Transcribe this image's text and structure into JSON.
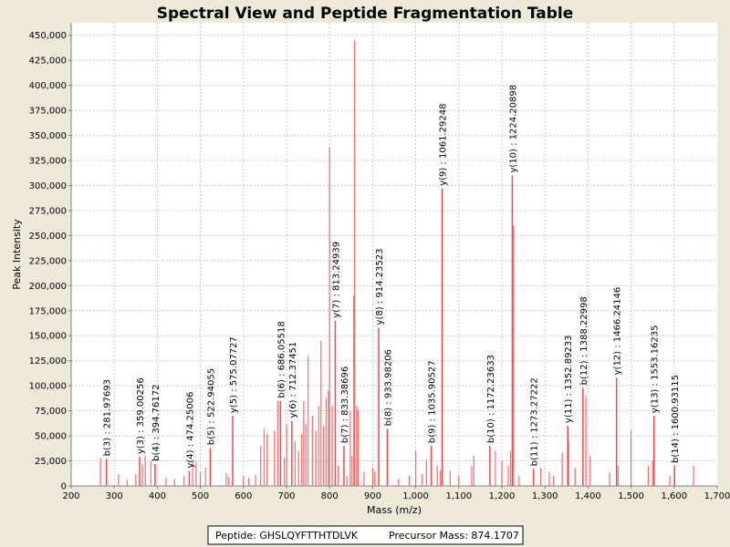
{
  "chart_data": {
    "type": "bar",
    "title": "Spectral View and Peptide Fragmentation Table",
    "xlabel": "Mass (m/z)",
    "ylabel": "Peak Intensity",
    "xlim": [
      200,
      1700
    ],
    "ylim": [
      0,
      462500
    ],
    "grid": true,
    "x_ticks": [
      "200",
      "300",
      "400",
      "500",
      "600",
      "700",
      "800",
      "900",
      "1,000",
      "1,100",
      "1,200",
      "1,300",
      "1,400",
      "1,500",
      "1,600",
      "1,700"
    ],
    "y_ticks": [
      "0",
      "25,000",
      "50,000",
      "75,000",
      "100,000",
      "125,000",
      "150,000",
      "175,000",
      "200,000",
      "225,000",
      "250,000",
      "275,000",
      "300,000",
      "325,000",
      "350,000",
      "375,000",
      "400,000",
      "425,000",
      "450,000"
    ],
    "bar_color": "#ff4444",
    "annotated_peaks": [
      {
        "mz": 281.98,
        "intensity": 27000,
        "label": "b(3) : 281.97693"
      },
      {
        "mz": 359.0,
        "intensity": 29000,
        "label": "y(3) : 359.00256"
      },
      {
        "mz": 394.76,
        "intensity": 22000,
        "label": "b(4) : 394.76172"
      },
      {
        "mz": 474.25,
        "intensity": 15000,
        "label": "y(4) : 474.25006"
      },
      {
        "mz": 522.94,
        "intensity": 38000,
        "label": "b(5) : 522.94055"
      },
      {
        "mz": 575.08,
        "intensity": 70000,
        "label": "y(5) : 575.07727"
      },
      {
        "mz": 686.06,
        "intensity": 85000,
        "label": "b(6) : 686.05518"
      },
      {
        "mz": 712.37,
        "intensity": 65000,
        "label": "y(6) : 712.37451"
      },
      {
        "mz": 813.25,
        "intensity": 165000,
        "label": "y(7) : 813.24939"
      },
      {
        "mz": 833.39,
        "intensity": 40000,
        "label": "b(7) : 833.38696"
      },
      {
        "mz": 914.24,
        "intensity": 158000,
        "label": "y(8) : 914.23523"
      },
      {
        "mz": 933.98,
        "intensity": 57000,
        "label": "b(8) : 933.98206"
      },
      {
        "mz": 1035.91,
        "intensity": 40000,
        "label": "b(9) : 1035.90527"
      },
      {
        "mz": 1061.29,
        "intensity": 297000,
        "label": "y(9) : 1061.29248"
      },
      {
        "mz": 1172.24,
        "intensity": 40000,
        "label": "b(10) : 1172.23633"
      },
      {
        "mz": 1224.21,
        "intensity": 310000,
        "label": "y(10) : 1224.20898"
      },
      {
        "mz": 1273.27,
        "intensity": 17000,
        "label": "b(11) : 1273.27222"
      },
      {
        "mz": 1352.89,
        "intensity": 60000,
        "label": "y(11) : 1352.89233"
      },
      {
        "mz": 1388.23,
        "intensity": 98000,
        "label": "b(12) : 1388.22998"
      },
      {
        "mz": 1466.24,
        "intensity": 108000,
        "label": "y(12) : 1466.24146"
      },
      {
        "mz": 1553.16,
        "intensity": 70000,
        "label": "y(13) : 1553.16235"
      },
      {
        "mz": 1600.93,
        "intensity": 20000,
        "label": "b(14) : 1600.93115"
      }
    ],
    "other_peaks": [
      [
        268,
        28000
      ],
      [
        310,
        12000
      ],
      [
        330,
        6000
      ],
      [
        350,
        12000
      ],
      [
        365,
        22000
      ],
      [
        372,
        30000
      ],
      [
        385,
        25000
      ],
      [
        420,
        8000
      ],
      [
        440,
        7000
      ],
      [
        462,
        10000
      ],
      [
        482,
        25000
      ],
      [
        490,
        24000
      ],
      [
        500,
        14000
      ],
      [
        512,
        18000
      ],
      [
        560,
        13000
      ],
      [
        566,
        9000
      ],
      [
        600,
        10000
      ],
      [
        612,
        8000
      ],
      [
        628,
        11000
      ],
      [
        640,
        40000
      ],
      [
        648,
        57000
      ],
      [
        655,
        52000
      ],
      [
        672,
        55000
      ],
      [
        680,
        85000
      ],
      [
        695,
        28000
      ],
      [
        700,
        62000
      ],
      [
        720,
        45000
      ],
      [
        728,
        35000
      ],
      [
        735,
        52000
      ],
      [
        740,
        85000
      ],
      [
        745,
        62000
      ],
      [
        750,
        130000
      ],
      [
        760,
        70000
      ],
      [
        768,
        55000
      ],
      [
        775,
        80000
      ],
      [
        780,
        145000
      ],
      [
        786,
        60000
      ],
      [
        792,
        88000
      ],
      [
        797,
        95000
      ],
      [
        800,
        338000
      ],
      [
        806,
        80000
      ],
      [
        820,
        20000
      ],
      [
        840,
        10000
      ],
      [
        848,
        75000
      ],
      [
        852,
        30000
      ],
      [
        856,
        190000
      ],
      [
        858,
        445000
      ],
      [
        863,
        80000
      ],
      [
        866,
        76000
      ],
      [
        880,
        14000
      ],
      [
        900,
        18000
      ],
      [
        905,
        14000
      ],
      [
        960,
        7000
      ],
      [
        985,
        10000
      ],
      [
        1000,
        35000
      ],
      [
        1015,
        12000
      ],
      [
        1025,
        26000
      ],
      [
        1050,
        20000
      ],
      [
        1057,
        16000
      ],
      [
        1080,
        15000
      ],
      [
        1100,
        10000
      ],
      [
        1130,
        20000
      ],
      [
        1135,
        30000
      ],
      [
        1185,
        35000
      ],
      [
        1200,
        25000
      ],
      [
        1215,
        20000
      ],
      [
        1220,
        35000
      ],
      [
        1227,
        260000
      ],
      [
        1240,
        10000
      ],
      [
        1290,
        18000
      ],
      [
        1310,
        14000
      ],
      [
        1320,
        10000
      ],
      [
        1340,
        33000
      ],
      [
        1355,
        45000
      ],
      [
        1370,
        18000
      ],
      [
        1395,
        90000
      ],
      [
        1405,
        30000
      ],
      [
        1450,
        14000
      ],
      [
        1470,
        20000
      ],
      [
        1500,
        56000
      ],
      [
        1540,
        20000
      ],
      [
        1550,
        25000
      ],
      [
        1590,
        10000
      ],
      [
        1645,
        20000
      ]
    ],
    "legend": {
      "peptide": "Peptide: GHSLQYFTTHTDLVK",
      "precursor": "Precursor Mass: 874.1707"
    }
  }
}
